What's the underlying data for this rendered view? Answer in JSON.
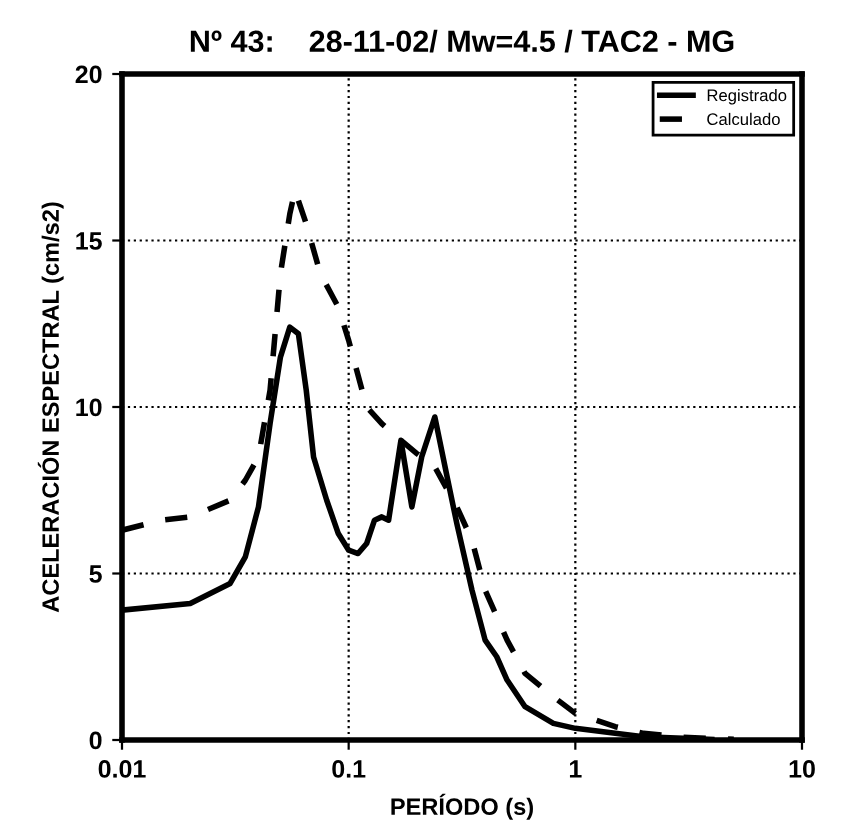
{
  "chart_data": {
    "type": "line",
    "title": "Nº 43:    28-11-02/ Mw=4.5 / TAC2 - MG",
    "xlabel": "PERÍODO (s)",
    "ylabel": "ACELERACIÓN ESPECTRAL (cm/s2)",
    "log": "x",
    "xlim": [
      0.01,
      10
    ],
    "xticks": [
      0.01,
      0.1,
      1,
      10
    ],
    "ylim": [
      0,
      20
    ],
    "yticks": [
      0,
      5,
      10,
      15,
      20
    ],
    "grid": true,
    "legend": "top right",
    "series": [
      {
        "name": "Registrado",
        "color": "#000000",
        "line_style": "solid",
        "x": [
          0.01,
          0.02,
          0.03,
          0.035,
          0.04,
          0.045,
          0.05,
          0.055,
          0.06,
          0.065,
          0.07,
          0.08,
          0.09,
          0.1,
          0.11,
          0.12,
          0.13,
          0.14,
          0.15,
          0.17,
          0.19,
          0.21,
          0.24,
          0.27,
          0.3,
          0.35,
          0.4,
          0.45,
          0.5,
          0.6,
          0.8,
          1,
          1.5,
          2,
          3,
          4
        ],
        "values": [
          3.9,
          4.1,
          4.7,
          5.5,
          7,
          9.5,
          11.5,
          12.4,
          12.2,
          10.5,
          8.5,
          7.2,
          6.2,
          5.7,
          5.6,
          5.9,
          6.6,
          6.7,
          6.6,
          9.0,
          7.0,
          8.5,
          9.7,
          8,
          6.5,
          4.5,
          3.0,
          2.5,
          1.8,
          1.0,
          0.5,
          0.35,
          0.2,
          0.1,
          0.05,
          0.02
        ]
      },
      {
        "name": "Calculado",
        "color": "#000000",
        "line_style": "dashed",
        "x": [
          0.01,
          0.015,
          0.02,
          0.03,
          0.035,
          0.04,
          0.045,
          0.05,
          0.055,
          0.058,
          0.065,
          0.075,
          0.09,
          0.1,
          0.12,
          0.14,
          0.17,
          0.2,
          0.24,
          0.3,
          0.35,
          0.4,
          0.5,
          0.6,
          0.8,
          1,
          1.5,
          2,
          3,
          5
        ],
        "values": [
          6.3,
          6.6,
          6.7,
          7.2,
          7.8,
          8.5,
          10.5,
          14,
          15.8,
          16.5,
          15.5,
          14,
          13,
          12,
          10.0,
          9.5,
          9,
          8.6,
          8.2,
          7,
          6,
          4.5,
          3,
          2,
          1.3,
          0.8,
          0.4,
          0.2,
          0.08,
          0.02
        ]
      }
    ]
  }
}
